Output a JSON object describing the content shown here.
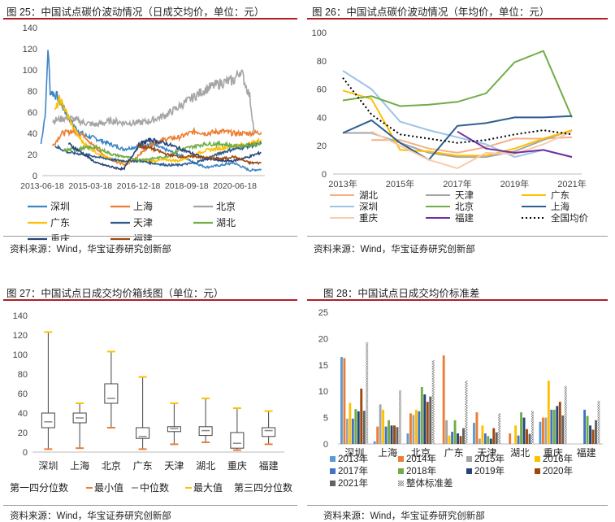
{
  "panels": {
    "p25": {
      "title": "图 25：中国试点碳价波动情况（日成交均价，单位：元）",
      "source": "资料来源：Wind，华宝证券研究创新部"
    },
    "p26": {
      "title": "图 26：中国试点碳价波动情况（年均价，单位：元）",
      "source": "资料来源：Wind，华宝证券研究创新部"
    },
    "p27": {
      "title": "图 27：中国试点日成交均价箱线图（单位：元）",
      "source": "资料来源：Wind，华宝证券研究创新部"
    },
    "p28": {
      "title": "图 28：中国试点日成交均价标准差",
      "source": "资料来源：Wind，华宝证券研究创新部"
    }
  },
  "chart_data": [
    {
      "id": "c25",
      "type": "line",
      "x_ticks": [
        "2013-06-18",
        "2015-03-18",
        "2016-12-18",
        "2018-09-18",
        "2020-06-18"
      ],
      "ylim": [
        0,
        140
      ],
      "y_ticks": [
        0,
        20,
        40,
        60,
        80,
        100,
        120,
        140
      ],
      "series": [
        {
          "name": "深圳",
          "color": "#3d86c6",
          "points": [
            [
              "2013-06",
              30
            ],
            [
              "2013-08",
              62
            ],
            [
              "2013-09",
              122
            ],
            [
              "2013-10",
              80
            ],
            [
              "2014-01",
              75
            ],
            [
              "2014-06",
              55
            ],
            [
              "2014-09",
              45
            ],
            [
              "2015-01",
              38
            ],
            [
              "2015-06",
              35
            ],
            [
              "2015-12",
              30
            ],
            [
              "2016-06",
              25
            ],
            [
              "2017-01",
              28
            ],
            [
              "2017-06",
              30
            ],
            [
              "2018-01",
              24
            ],
            [
              "2018-06",
              20
            ],
            [
              "2019-01",
              12
            ],
            [
              "2019-06",
              8
            ],
            [
              "2020-01",
              10
            ],
            [
              "2020-06",
              12
            ],
            [
              "2021-01",
              5
            ],
            [
              "2021-06",
              6
            ]
          ]
        },
        {
          "name": "上海",
          "color": "#ed7d31",
          "points": [
            [
              "2013-11",
              28
            ],
            [
              "2014-03",
              40
            ],
            [
              "2014-08",
              42
            ],
            [
              "2015-01",
              38
            ],
            [
              "2015-04",
              30
            ],
            [
              "2015-10",
              18
            ],
            [
              "2016-04",
              12
            ],
            [
              "2016-07",
              10
            ],
            [
              "2016-12",
              18
            ],
            [
              "2017-06",
              30
            ],
            [
              "2018-01",
              35
            ],
            [
              "2018-06",
              36
            ],
            [
              "2019-01",
              42
            ],
            [
              "2019-06",
              40
            ],
            [
              "2020-01",
              42
            ],
            [
              "2020-06",
              40
            ],
            [
              "2021-01",
              40
            ],
            [
              "2021-06",
              41
            ]
          ]
        },
        {
          "name": "北京",
          "color": "#a5a5a5",
          "points": [
            [
              "2013-11",
              52
            ],
            [
              "2014-06",
              55
            ],
            [
              "2015-01",
              50
            ],
            [
              "2015-06",
              48
            ],
            [
              "2016-01",
              52
            ],
            [
              "2016-06",
              50
            ],
            [
              "2017-01",
              50
            ],
            [
              "2017-06",
              52
            ],
            [
              "2018-01",
              58
            ],
            [
              "2018-06",
              65
            ],
            [
              "2019-01",
              75
            ],
            [
              "2019-06",
              82
            ],
            [
              "2020-01",
              88
            ],
            [
              "2020-06",
              90
            ],
            [
              "2020-09",
              100
            ],
            [
              "2021-01",
              75
            ],
            [
              "2021-03",
              40
            ]
          ]
        },
        {
          "name": "广东",
          "color": "#ffc000",
          "points": [
            [
              "2013-12",
              60
            ],
            [
              "2014-02",
              72
            ],
            [
              "2014-04",
              65
            ],
            [
              "2014-07",
              50
            ],
            [
              "2014-10",
              38
            ],
            [
              "2015-01",
              30
            ],
            [
              "2015-06",
              22
            ],
            [
              "2016-01",
              15
            ],
            [
              "2016-06",
              13
            ],
            [
              "2017-01",
              14
            ],
            [
              "2017-06",
              14
            ],
            [
              "2018-01",
              15
            ],
            [
              "2018-06",
              14
            ],
            [
              "2019-01",
              20
            ],
            [
              "2019-06",
              24
            ],
            [
              "2020-01",
              26
            ],
            [
              "2020-06",
              28
            ],
            [
              "2021-01",
              30
            ],
            [
              "2021-06",
              34
            ]
          ]
        },
        {
          "name": "天津",
          "color": "#2f5b8e",
          "points": [
            [
              "2013-12",
              28
            ],
            [
              "2014-06",
              22
            ],
            [
              "2015-01",
              20
            ],
            [
              "2015-06",
              18
            ],
            [
              "2016-01",
              15
            ],
            [
              "2016-06",
              14
            ],
            [
              "2017-01",
              14
            ],
            [
              "2017-06",
              12
            ],
            [
              "2018-01",
              10
            ],
            [
              "2018-06",
              10
            ],
            [
              "2019-01",
              12
            ],
            [
              "2019-06",
              16
            ],
            [
              "2020-01",
              22
            ],
            [
              "2020-06",
              25
            ],
            [
              "2021-01",
              28
            ],
            [
              "2021-06",
              30
            ]
          ]
        },
        {
          "name": "湖北",
          "color": "#70ad47",
          "points": [
            [
              "2014-04",
              24
            ],
            [
              "2014-09",
              25
            ],
            [
              "2015-01",
              26
            ],
            [
              "2015-06",
              27
            ],
            [
              "2016-01",
              20
            ],
            [
              "2016-06",
              18
            ],
            [
              "2017-01",
              15
            ],
            [
              "2017-06",
              16
            ],
            [
              "2018-01",
              18
            ],
            [
              "2018-06",
              24
            ],
            [
              "2019-01",
              28
            ],
            [
              "2019-06",
              30
            ],
            [
              "2020-01",
              30
            ],
            [
              "2020-06",
              28
            ],
            [
              "2021-01",
              29
            ],
            [
              "2021-06",
              30
            ]
          ]
        },
        {
          "name": "重庆",
          "color": "#264478",
          "points": [
            [
              "2014-06",
              30
            ],
            [
              "2015-01",
              20
            ],
            [
              "2015-06",
              12
            ],
            [
              "2016-01",
              8
            ],
            [
              "2016-06",
              6
            ],
            [
              "2017-01",
              30
            ],
            [
              "2017-06",
              34
            ],
            [
              "2018-01",
              30
            ],
            [
              "2018-06",
              26
            ],
            [
              "2019-01",
              20
            ],
            [
              "2019-06",
              16
            ],
            [
              "2020-01",
              14
            ],
            [
              "2020-06",
              14
            ],
            [
              "2021-01",
              18
            ],
            [
              "2021-06",
              22
            ]
          ]
        },
        {
          "name": "福建",
          "color": "#9e480e",
          "points": [
            [
              "2016-12",
              28
            ],
            [
              "2017-06",
              26
            ],
            [
              "2018-01",
              20
            ],
            [
              "2018-06",
              18
            ],
            [
              "2019-01",
              18
            ],
            [
              "2019-06",
              17
            ],
            [
              "2020-01",
              16
            ],
            [
              "2020-06",
              18
            ],
            [
              "2021-01",
              12
            ],
            [
              "2021-06",
              12
            ]
          ]
        }
      ]
    },
    {
      "id": "c26",
      "type": "line",
      "categories": [
        "2013",
        "2014",
        "2015",
        "2016",
        "2017",
        "2018",
        "2019",
        "2020",
        "2021"
      ],
      "x_ticks": [
        "2013年",
        "2015年",
        "2017年",
        "2019年",
        "2021年"
      ],
      "ylim": [
        0,
        100
      ],
      "y_ticks": [
        0,
        20,
        40,
        60,
        80,
        100
      ],
      "series": [
        {
          "name": "湖北",
          "color": "#f4b183",
          "values": [
            null,
            24,
            24,
            18,
            15,
            19,
            25,
            25,
            26
          ],
          "dash": false
        },
        {
          "name": "天津",
          "color": "#a5a5a5",
          "values": [
            29,
            29,
            22,
            15,
            12,
            12,
            16,
            24,
            31
          ],
          "dash": false
        },
        {
          "name": "广东",
          "color": "#ffc000",
          "values": [
            59,
            53,
            17,
            16,
            13,
            13,
            18,
            25,
            31
          ],
          "dash": false
        },
        {
          "name": "深圳",
          "color": "#9dc3e6",
          "values": [
            73,
            60,
            37,
            31,
            26,
            21,
            12,
            17,
            12
          ],
          "dash": false
        },
        {
          "name": "北京",
          "color": "#70ad47",
          "values": [
            52,
            55,
            48,
            49,
            51,
            57,
            79,
            87,
            40
          ],
          "dash": false
        },
        {
          "name": "上海",
          "color": "#2e5e8f",
          "values": [
            29,
            38,
            22,
            10,
            34,
            36,
            40,
            40,
            41
          ],
          "dash": false
        },
        {
          "name": "重庆",
          "color": "#f8cbad",
          "values": [
            null,
            30,
            20,
            10,
            4,
            15,
            14,
            21,
            30
          ],
          "dash": false
        },
        {
          "name": "福建",
          "color": "#7030a0",
          "values": [
            null,
            null,
            null,
            null,
            30,
            18,
            15,
            17,
            12
          ],
          "dash": false
        },
        {
          "name": "全国均价",
          "color": "#000000",
          "values": [
            68,
            42,
            28,
            25,
            22,
            24,
            28,
            31,
            28
          ],
          "dash": true
        }
      ]
    },
    {
      "id": "c27",
      "type": "box",
      "categories": [
        "深圳",
        "上海",
        "北京",
        "广东",
        "天津",
        "湖北",
        "重庆",
        "福建"
      ],
      "ylim": [
        0,
        140
      ],
      "y_ticks": [
        0,
        20,
        40,
        60,
        80,
        100,
        120,
        140
      ],
      "boxes": [
        {
          "min": 3,
          "q1": 25,
          "median": 31,
          "q3": 40,
          "max": 123
        },
        {
          "min": 4,
          "q1": 30,
          "median": 35,
          "q3": 40,
          "max": 50
        },
        {
          "min": 25,
          "q1": 50,
          "median": 55,
          "q3": 70,
          "max": 103
        },
        {
          "min": 3,
          "q1": 14,
          "median": 16,
          "q3": 25,
          "max": 77
        },
        {
          "min": 8,
          "q1": 21,
          "median": 24,
          "q3": 26,
          "max": 50
        },
        {
          "min": 10,
          "q1": 17,
          "median": 22,
          "q3": 26,
          "max": 55
        },
        {
          "min": 2,
          "q1": 4,
          "median": 9,
          "q3": 20,
          "max": 45
        },
        {
          "min": 8,
          "q1": 16,
          "median": 22,
          "q3": 25,
          "max": 42
        }
      ],
      "legend": [
        "第一四分位数",
        "最小值",
        "中位数",
        "最大值",
        "第三四分位数"
      ]
    },
    {
      "id": "c28",
      "type": "bar",
      "categories": [
        "深圳",
        "上海",
        "北京",
        "广东",
        "天津",
        "湖北",
        "重庆",
        "福建"
      ],
      "ylim": [
        0,
        25
      ],
      "y_ticks": [
        0,
        5,
        10,
        15,
        20,
        25
      ],
      "series": [
        {
          "name": "2013年",
          "color": "#5b9bd5",
          "values": [
            16.5,
            0.5,
            2,
            0,
            4,
            0,
            4.2,
            0
          ]
        },
        {
          "name": "2014年",
          "color": "#ed7d31",
          "values": [
            16.3,
            3.3,
            5.8,
            16.8,
            6,
            2,
            5,
            0
          ]
        },
        {
          "name": "2015年",
          "color": "#a5a5a5",
          "values": [
            4.8,
            7.5,
            5.5,
            4.5,
            1,
            0,
            5,
            0
          ]
        },
        {
          "name": "2016年",
          "color": "#ffc000",
          "values": [
            7.8,
            6.5,
            6.5,
            1.6,
            3.5,
            3.5,
            12,
            0
          ]
        },
        {
          "name": "2017年",
          "color": "#4472c4",
          "values": [
            4.8,
            3.3,
            6.2,
            2.3,
            2,
            1.6,
            6.5,
            6.5
          ]
        },
        {
          "name": "2018年",
          "color": "#70ad47",
          "values": [
            6.6,
            4.5,
            10.8,
            4.5,
            1.5,
            6,
            6.5,
            5.3
          ]
        },
        {
          "name": "2019年",
          "color": "#264478",
          "values": [
            6.2,
            3.5,
            9.4,
            2,
            1,
            5,
            7.2,
            3.5
          ]
        },
        {
          "name": "2020年",
          "color": "#9e480e",
          "values": [
            10.5,
            3.5,
            8,
            1.5,
            3,
            2.8,
            8,
            2.7
          ]
        },
        {
          "name": "2021年",
          "color": "#636363",
          "values": [
            6.3,
            3.2,
            9,
            3,
            2.2,
            1.9,
            5.4,
            4.5
          ]
        },
        {
          "name": "整体标准差",
          "color": "#888888",
          "pattern": true,
          "values": [
            19.3,
            10.2,
            15.9,
            12,
            5.8,
            6.3,
            11,
            8.2
          ]
        }
      ]
    }
  ]
}
